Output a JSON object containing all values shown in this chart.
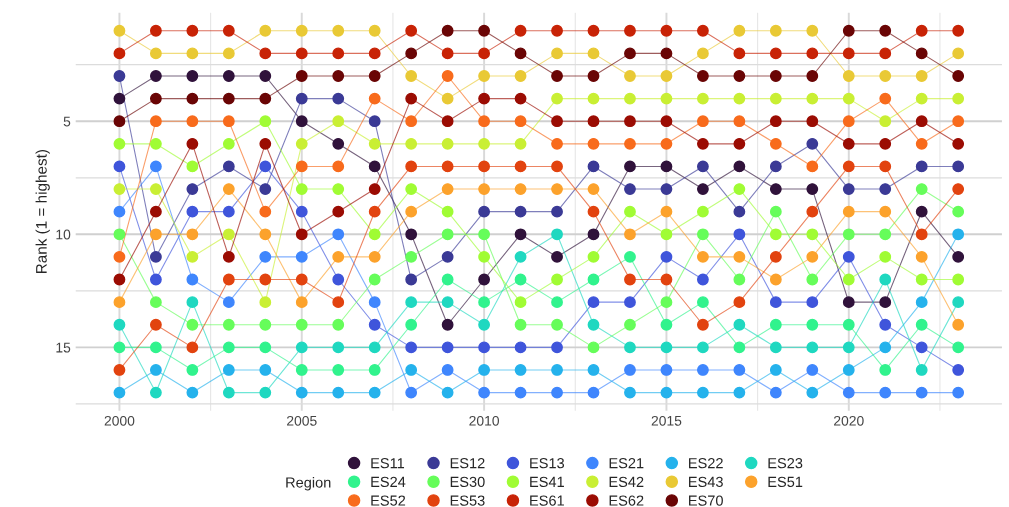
{
  "chart_data": {
    "type": "line",
    "ylabel": "Rank (1 = highest)",
    "legend_title": "Region",
    "legend": "bottom",
    "grid": true,
    "marker": "circle",
    "x": [
      2000,
      2001,
      2002,
      2003,
      2004,
      2005,
      2006,
      2007,
      2008,
      2009,
      2010,
      2011,
      2012,
      2013,
      2014,
      2015,
      2016,
      2017,
      2018,
      2019,
      2020,
      2021,
      2022,
      2023
    ],
    "xlim": [
      1998.8,
      2024.2
    ],
    "ylim": [
      17.8,
      0.2
    ],
    "xticks": [
      2000,
      {
        "value": 2002.5,
        "label": null
      },
      2005,
      {
        "value": 2007.5,
        "label": null
      },
      2010,
      {
        "value": 2012.5,
        "label": null
      },
      2015,
      {
        "value": 2017.5,
        "label": null
      },
      2020,
      {
        "value": 2022.5,
        "label": null
      }
    ],
    "yticks": [
      {
        "value": 2.5,
        "label": null
      },
      5,
      {
        "value": 7.5,
        "label": null
      },
      10,
      {
        "value": 12.5,
        "label": null
      },
      15,
      {
        "value": 17.5,
        "label": null
      }
    ],
    "series": [
      {
        "name": "ES11",
        "color": "#30123b",
        "values": [
          4,
          3,
          3,
          3,
          3,
          5,
          6,
          7,
          10,
          14,
          12,
          10,
          11,
          10,
          7,
          7,
          8,
          7,
          8,
          8,
          13,
          13,
          9,
          11
        ]
      },
      {
        "name": "ES12",
        "color": "#3b3a96",
        "values": [
          3,
          11,
          8,
          7,
          8,
          4,
          4,
          5,
          12,
          11,
          9,
          9,
          9,
          7,
          8,
          8,
          7,
          9,
          7,
          6,
          8,
          8,
          7,
          7
        ]
      },
      {
        "name": "ES13",
        "color": "#3f55db",
        "values": [
          7,
          12,
          9,
          9,
          7,
          9,
          12,
          14,
          15,
          15,
          15,
          15,
          15,
          13,
          13,
          11,
          12,
          10,
          13,
          13,
          11,
          14,
          15,
          16
        ]
      },
      {
        "name": "ES21",
        "color": "#3f86fd",
        "values": [
          9,
          7,
          12,
          13,
          11,
          11,
          10,
          13,
          17,
          16,
          17,
          17,
          17,
          17,
          16,
          16,
          16,
          16,
          17,
          16,
          17,
          17,
          17,
          17
        ]
      },
      {
        "name": "ES22",
        "color": "#25b2ec",
        "values": [
          17,
          16,
          17,
          16,
          16,
          17,
          17,
          17,
          16,
          17,
          16,
          16,
          16,
          16,
          17,
          17,
          17,
          17,
          16,
          17,
          16,
          15,
          13,
          10
        ]
      },
      {
        "name": "ES23",
        "color": "#1fd8c0",
        "values": [
          14,
          17,
          13,
          17,
          17,
          15,
          15,
          15,
          13,
          13,
          14,
          11,
          10,
          14,
          15,
          15,
          15,
          14,
          15,
          15,
          15,
          12,
          16,
          13
        ]
      },
      {
        "name": "ES24",
        "color": "#31f38d",
        "values": [
          15,
          15,
          16,
          15,
          15,
          16,
          16,
          16,
          14,
          12,
          13,
          12,
          13,
          12,
          11,
          14,
          13,
          15,
          14,
          14,
          14,
          16,
          14,
          15
        ]
      },
      {
        "name": "ES30",
        "color": "#66fd5a",
        "values": [
          10,
          13,
          14,
          14,
          14,
          14,
          14,
          12,
          11,
          10,
          10,
          14,
          14,
          15,
          14,
          13,
          10,
          12,
          9,
          12,
          10,
          10,
          8,
          9
        ]
      },
      {
        "name": "ES41",
        "color": "#a0fc34",
        "values": [
          6,
          6,
          7,
          6,
          5,
          8,
          8,
          10,
          8,
          9,
          11,
          13,
          12,
          11,
          9,
          10,
          9,
          8,
          10,
          10,
          12,
          11,
          12,
          12
        ]
      },
      {
        "name": "ES42",
        "color": "#c9ef34",
        "values": [
          8,
          8,
          11,
          10,
          13,
          6,
          5,
          6,
          6,
          6,
          6,
          6,
          4,
          4,
          4,
          4,
          4,
          4,
          4,
          4,
          4,
          5,
          4,
          4
        ]
      },
      {
        "name": "ES43",
        "color": "#e9c935",
        "values": [
          1,
          2,
          2,
          2,
          1,
          1,
          1,
          1,
          3,
          4,
          3,
          3,
          2,
          2,
          3,
          3,
          2,
          1,
          1,
          1,
          3,
          3,
          3,
          2
        ]
      },
      {
        "name": "ES51",
        "color": "#fca22c",
        "values": [
          13,
          10,
          10,
          8,
          10,
          13,
          11,
          11,
          9,
          8,
          8,
          8,
          8,
          8,
          10,
          9,
          11,
          11,
          12,
          11,
          9,
          9,
          11,
          14
        ]
      },
      {
        "name": "ES52",
        "color": "#f86b1c",
        "values": [
          11,
          5,
          5,
          5,
          9,
          7,
          7,
          4,
          5,
          3,
          5,
          5,
          6,
          6,
          6,
          6,
          5,
          5,
          6,
          7,
          5,
          4,
          6,
          5
        ]
      },
      {
        "name": "ES53",
        "color": "#e2430f",
        "values": [
          16,
          14,
          15,
          12,
          12,
          12,
          13,
          9,
          7,
          7,
          7,
          7,
          7,
          9,
          12,
          12,
          14,
          13,
          11,
          9,
          7,
          7,
          10,
          8
        ]
      },
      {
        "name": "ES61",
        "color": "#c82306",
        "values": [
          2,
          1,
          1,
          1,
          2,
          2,
          2,
          2,
          1,
          2,
          2,
          1,
          1,
          1,
          1,
          1,
          1,
          2,
          2,
          2,
          2,
          2,
          1,
          1
        ]
      },
      {
        "name": "ES62",
        "color": "#9b0c03",
        "values": [
          12,
          9,
          6,
          11,
          6,
          10,
          9,
          8,
          4,
          5,
          4,
          4,
          5,
          5,
          5,
          5,
          6,
          6,
          5,
          5,
          6,
          6,
          5,
          6
        ]
      },
      {
        "name": "ES70",
        "color": "#6a0505",
        "values": [
          5,
          4,
          4,
          4,
          4,
          3,
          3,
          3,
          2,
          1,
          1,
          2,
          3,
          3,
          2,
          2,
          3,
          3,
          3,
          3,
          1,
          1,
          2,
          3
        ]
      }
    ]
  }
}
